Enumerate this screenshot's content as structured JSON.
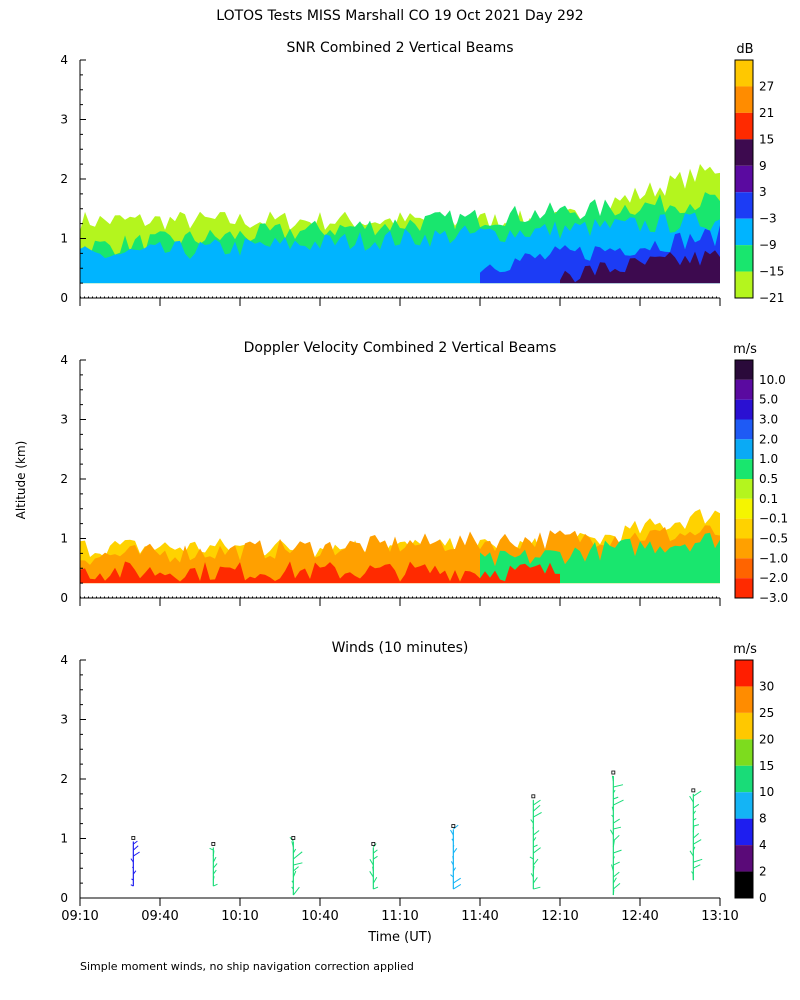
{
  "figure": {
    "title": "LOTOS Tests MISS Marshall CO  19 Oct 2021 Day 292",
    "ylabel": "Altitude (km)",
    "xlabel": "Time (UT)",
    "footnote": "Simple moment winds, no ship navigation correction applied",
    "x_ticks": [
      "09:10",
      "09:40",
      "10:10",
      "10:40",
      "11:10",
      "11:40",
      "12:10",
      "12:40",
      "13:10"
    ],
    "y_ticks": [
      "0",
      "1",
      "2",
      "3",
      "4"
    ]
  },
  "chart_data": [
    {
      "type": "heatmap",
      "title": "SNR Combined 2 Vertical Beams",
      "ylabel": "Altitude (km)",
      "ylim": [
        0,
        4
      ],
      "xlim": [
        "09:10",
        "13:10"
      ],
      "colorbar": {
        "unit": "dB",
        "levels": [
          "27",
          "21",
          "15",
          "9",
          "3",
          "−3",
          "−9",
          "−15",
          "−21"
        ],
        "colors": [
          "#ffc800",
          "#ff8c00",
          "#ff2a00",
          "#3d0a4f",
          "#5a0aa0",
          "#1c3cf5",
          "#00b4ff",
          "#19e66e",
          "#b4f51e"
        ]
      },
      "bands": [
        {
          "level": "−21",
          "start": "09:10",
          "end": "12:10",
          "floor_km": 1.3,
          "rise_km": 0.0
        },
        {
          "level": "−21",
          "start": "12:10",
          "end": "13:10",
          "floor_km": 1.3,
          "rise_km": 0.9
        },
        {
          "level": "−15",
          "start": "09:10",
          "end": "13:10",
          "floor_km": 0.85,
          "rise_km": 0.8
        },
        {
          "level": "−9",
          "start": "09:10",
          "end": "13:10",
          "floor_km": 0.7,
          "rise_km": 0.6
        },
        {
          "level": "−3",
          "start": "11:40",
          "end": "13:10",
          "floor_km": 0.55,
          "rise_km": 0.5
        },
        {
          "level": "9",
          "start": "12:10",
          "end": "13:10",
          "floor_km": 0.4,
          "rise_km": 0.3
        }
      ]
    },
    {
      "type": "heatmap",
      "title": "Doppler Velocity Combined 2 Vertical Beams",
      "ylabel": "Altitude (km)",
      "ylim": [
        0,
        4
      ],
      "xlim": [
        "09:10",
        "13:10"
      ],
      "colorbar": {
        "unit": "m/s",
        "levels": [
          "10.0",
          "5.0",
          "3.0",
          "2.0",
          "1.0",
          "0.5",
          "0.1",
          "−0.1",
          "−0.5",
          "−1.0",
          "−2.0",
          "−3.0"
        ],
        "colors": [
          "#2a0a3a",
          "#5a0aa0",
          "#2a10d2",
          "#1e5af5",
          "#0aaaf5",
          "#19e66e",
          "#b4f51e",
          "#f5f500",
          "#ffd200",
          "#ffa000",
          "#ff6400",
          "#ff2a00"
        ]
      },
      "bands": [
        {
          "level": "−0.5",
          "start": "09:10",
          "end": "12:10",
          "floor_km": 0.85,
          "rise_km": 0.0
        },
        {
          "level": "−0.5",
          "start": "12:10",
          "end": "13:10",
          "floor_km": 0.85,
          "rise_km": 0.6
        },
        {
          "level": "−1.0",
          "start": "09:10",
          "end": "13:10",
          "floor_km": 0.7,
          "rise_km": 0.4
        },
        {
          "level": "0.5",
          "start": "11:40",
          "end": "13:10",
          "floor_km": 0.6,
          "rise_km": 0.4
        },
        {
          "level": "−3.0",
          "start": "09:10",
          "end": "12:10",
          "floor_km": 0.45,
          "rise_km": 0.0
        }
      ]
    },
    {
      "type": "wind_barbs",
      "title": "Winds (10 minutes)",
      "ylabel": "Altitude (km)",
      "xlabel": "Time (UT)",
      "ylim": [
        0,
        4
      ],
      "xlim": [
        "09:10",
        "13:10"
      ],
      "colorbar": {
        "unit": "m/s",
        "levels": [
          "30",
          "25",
          "20",
          "15",
          "10",
          "8",
          "4",
          "2",
          "0"
        ],
        "colors": [
          "#ff1e00",
          "#ff8c00",
          "#ffc800",
          "#7ddc1e",
          "#19dc78",
          "#14b4f5",
          "#1e1ef0",
          "#5a0a78",
          "#000000"
        ]
      },
      "profiles": [
        {
          "time": "09:30",
          "bottom_km": 0.2,
          "top_km": 0.95,
          "speed_ms": 6
        },
        {
          "time": "10:00",
          "bottom_km": 0.2,
          "top_km": 0.85,
          "speed_ms": 10
        },
        {
          "time": "10:30",
          "bottom_km": 0.05,
          "top_km": 0.95,
          "speed_ms": 14
        },
        {
          "time": "11:00",
          "bottom_km": 0.15,
          "top_km": 0.85,
          "speed_ms": 10
        },
        {
          "time": "11:30",
          "bottom_km": 0.15,
          "top_km": 1.15,
          "speed_ms": 8
        },
        {
          "time": "12:00",
          "bottom_km": 0.15,
          "top_km": 1.65,
          "speed_ms": 10
        },
        {
          "time": "12:30",
          "bottom_km": 0.05,
          "top_km": 2.05,
          "speed_ms": 12
        },
        {
          "time": "13:00",
          "bottom_km": 0.3,
          "top_km": 1.75,
          "speed_ms": 10
        }
      ]
    }
  ]
}
